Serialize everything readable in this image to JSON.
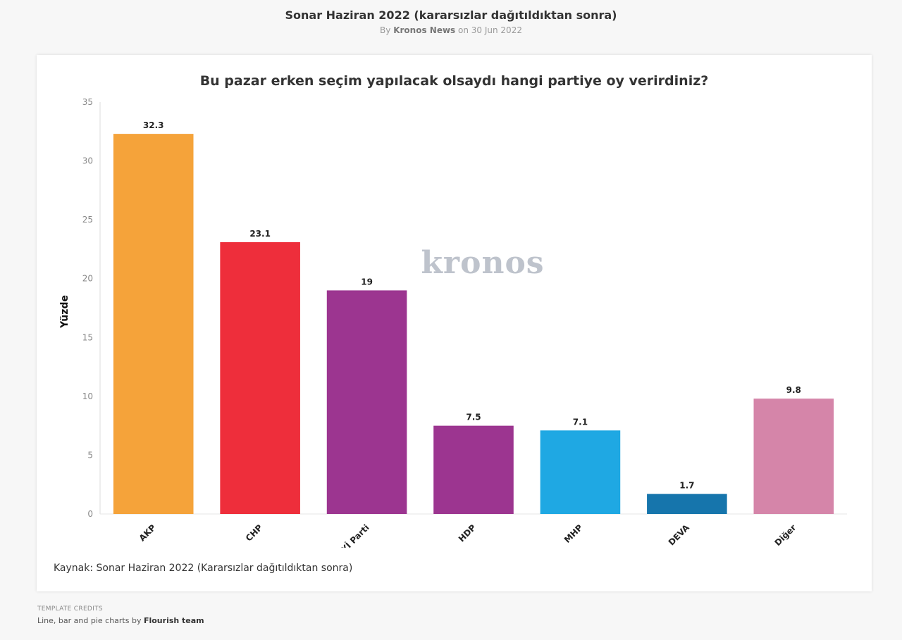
{
  "header": {
    "title": "Sonar Haziran 2022 (kararsızlar dağıtıldıktan sonra)",
    "by_prefix": "By",
    "author": "Kronos News",
    "date_text": "on 30 Jun 2022"
  },
  "watermark": {
    "text": "kronos"
  },
  "footer": {
    "source": "Kaynak: Sonar Haziran 2022 (Kararsızlar dağıtıldıktan sonra)",
    "credits_heading": "TEMPLATE CREDITS",
    "credits_prefix": "Line, bar and pie charts by",
    "credits_author": "Flourish team"
  },
  "chart_data": {
    "type": "bar",
    "title": "Bu pazar erken seçim yapılacak olsaydı hangi partiye oy verirdiniz?",
    "xlabel": "",
    "ylabel": "Yüzde",
    "ylim": [
      0,
      35
    ],
    "yticks": [
      0,
      5,
      10,
      15,
      20,
      25,
      30,
      35
    ],
    "grid": false,
    "categories": [
      "AKP",
      "CHP",
      "İYİ Parti",
      "HDP",
      "MHP",
      "DEVA",
      "Diğer"
    ],
    "values": [
      32.3,
      23.1,
      19,
      7.5,
      7.1,
      1.7,
      9.8
    ],
    "value_labels": [
      "32.3",
      "23.1",
      "19",
      "7.5",
      "7.1",
      "1.7",
      "9.8"
    ],
    "colors": [
      "#f5a33a",
      "#ee2e3b",
      "#9c3590",
      "#9c3590",
      "#1fa8e3",
      "#1675ac",
      "#d585a9"
    ]
  }
}
